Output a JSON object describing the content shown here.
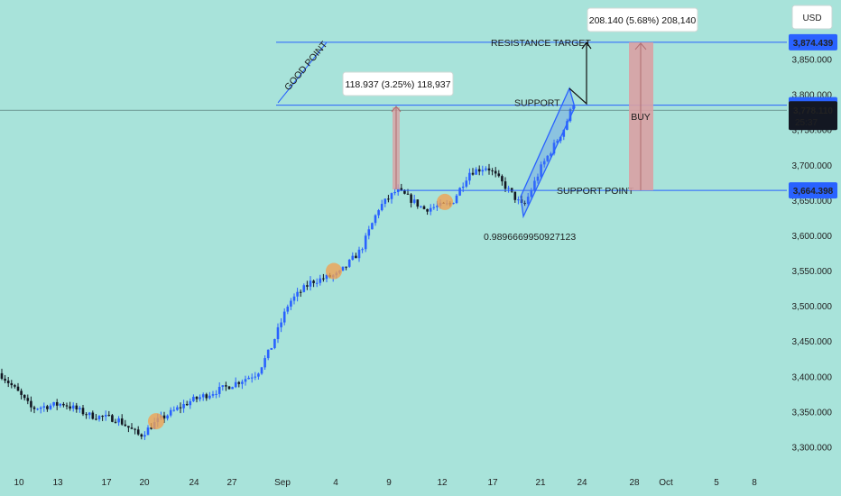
{
  "chart_data": {
    "type": "candlestick",
    "currency": "USD",
    "x_ticks": [
      "10",
      "13",
      "17",
      "20",
      "24",
      "27",
      "Sep",
      "4",
      "9",
      "12",
      "17",
      "21",
      "24",
      "28",
      "Oct",
      "5",
      "8"
    ],
    "y_ticks": [
      "3,300.000",
      "3,350.000",
      "3,400.000",
      "3,450.000",
      "3,500.000",
      "3,550.000",
      "3,600.000",
      "3,650.000",
      "3,700.000",
      "3,750.000",
      "3,800.000",
      "3,850.000"
    ],
    "ylim": [
      3290,
      3900
    ],
    "levels": [
      {
        "label": "RESISTANCE TARGET",
        "value": 3874.439,
        "tag": "3,874.439"
      },
      {
        "label": "SUPPORT",
        "value": 3785.237,
        "tag": "3,785.237"
      },
      {
        "label": "SUPPORT POINT",
        "value": 3664.398,
        "tag": "3,664.398"
      }
    ],
    "last_price": {
      "tag": "3,778.110",
      "countdown": "25:37",
      "value": 3778.11
    },
    "callouts": {
      "left_measure": "118.937 (3.25%) 118,937",
      "right_measure": "208.140 (5.68%) 208,140"
    },
    "annotations": {
      "good_point": "GOOD POINT",
      "buy": "BUY",
      "fib_value": "0.9896669950927123"
    },
    "colors": {
      "background": "#a8e3da",
      "up": "#2962ff",
      "down": "#131722",
      "level_line": "#2962ff",
      "buy_box": "#d9a0a3",
      "highlight": "#f0a152"
    }
  }
}
